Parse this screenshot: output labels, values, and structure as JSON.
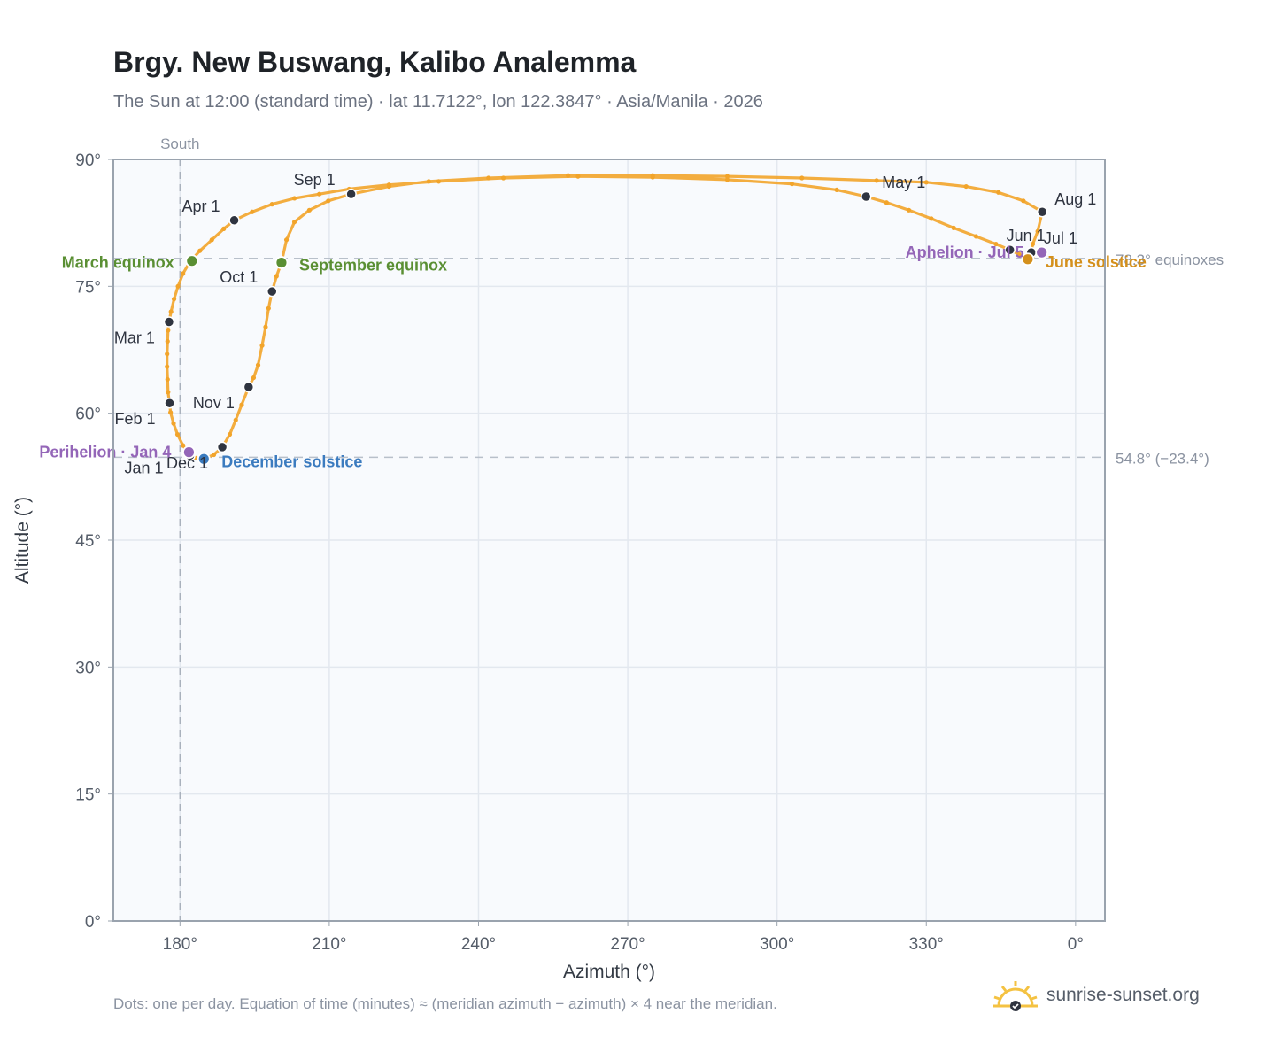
{
  "title": "Brgy. New Buswang, Kalibo Analemma",
  "subtitle": "The Sun at 12:00 (standard time) · lat 11.7122°, lon 122.3847° · Asia/Manila · 2026",
  "footnote": "Dots: one per day. Equation of time (minutes) ≈ (meridian azimuth − azimuth) × 4 near the meridian.",
  "brand": {
    "name": "sunrise-sunset.org",
    "icon": "sun-logo-icon"
  },
  "colors": {
    "path": "#f2a42a",
    "month_dot": "#2f3440",
    "equinox": "#5a8f33",
    "december": "#3b7bbf",
    "june": "#d4901c",
    "apsis": "#9466b8",
    "plot_bg": "#f8fafd",
    "grid": "#e3e8ef",
    "frame": "#9aa3ae"
  },
  "chart_data": {
    "type": "scatter",
    "title": "Brgy. New Buswang, Kalibo Analemma",
    "xlabel": "Azimuth (°)",
    "ylabel": "Altitude (°)",
    "xlim": [
      166.6,
      365.9
    ],
    "ylim": [
      0,
      90
    ],
    "x_ticks": [
      "180°",
      "210°",
      "240°",
      "270°",
      "300°",
      "330°",
      "0°"
    ],
    "y_ticks": [
      "0°",
      "15°",
      "30°",
      "45°",
      "60°",
      "75°",
      "90°"
    ],
    "south_label": "South",
    "south_azimuth": 180,
    "grid": true,
    "reference_lines": [
      {
        "altitude": 78.3,
        "label": "78.3° equinoxes"
      },
      {
        "altitude": 54.8,
        "label": "54.8° (−23.4°)"
      }
    ],
    "month_markers": [
      {
        "label": "Jan 1",
        "az": 182.0,
        "alt": 55.0
      },
      {
        "label": "Feb 1",
        "az": 177.9,
        "alt": 61.2
      },
      {
        "label": "Mar 1",
        "az": 177.8,
        "alt": 70.8
      },
      {
        "label": "Apr 1",
        "az": 190.9,
        "alt": 82.8
      },
      {
        "label": "May 1",
        "az": 317.9,
        "alt": 85.6
      },
      {
        "label": "Jun 1",
        "az": 346.8,
        "alt": 79.3
      },
      {
        "label": "Jul 1",
        "az": 351.1,
        "alt": 79.0
      },
      {
        "label": "Aug 1",
        "az": 353.3,
        "alt": 83.8
      },
      {
        "label": "Sep 1",
        "az": 214.4,
        "alt": 85.9
      },
      {
        "label": "Oct 1",
        "az": 198.5,
        "alt": 74.4
      },
      {
        "label": "Nov 1",
        "az": 193.8,
        "alt": 63.1
      },
      {
        "label": "Dec 1",
        "az": 188.5,
        "alt": 56.0
      }
    ],
    "events": [
      {
        "label": "March equinox",
        "az": 182.4,
        "alt": 78.0,
        "kind": "equinox"
      },
      {
        "label": "September equinox",
        "az": 200.4,
        "alt": 77.8,
        "kind": "equinox"
      },
      {
        "label": "December solstice",
        "az": 184.8,
        "alt": 54.6,
        "kind": "december"
      },
      {
        "label": "June solstice",
        "az": 350.4,
        "alt": 78.2,
        "kind": "june"
      },
      {
        "label": "Perihelion · Jan 4",
        "az": 181.8,
        "alt": 55.4,
        "kind": "apsis"
      },
      {
        "label": "Aphelion · Jul 5",
        "az": 353.2,
        "alt": 79.0,
        "kind": "apsis"
      }
    ],
    "daily_path": [
      [
        182.0,
        55.0
      ],
      [
        180.6,
        56.2
      ],
      [
        179.5,
        57.5
      ],
      [
        178.7,
        58.8
      ],
      [
        178.1,
        60.1
      ],
      [
        177.9,
        61.2
      ],
      [
        177.6,
        62.5
      ],
      [
        177.5,
        64.0
      ],
      [
        177.4,
        65.5
      ],
      [
        177.4,
        67.0
      ],
      [
        177.5,
        68.5
      ],
      [
        177.6,
        69.8
      ],
      [
        177.8,
        70.8
      ],
      [
        178.2,
        72.0
      ],
      [
        178.8,
        73.5
      ],
      [
        179.6,
        75.0
      ],
      [
        180.6,
        76.5
      ],
      [
        182.0,
        77.9
      ],
      [
        184.0,
        79.2
      ],
      [
        186.4,
        80.5
      ],
      [
        188.8,
        81.8
      ],
      [
        190.9,
        82.8
      ],
      [
        194.5,
        83.8
      ],
      [
        198.5,
        84.7
      ],
      [
        203.0,
        85.4
      ],
      [
        208.0,
        85.9
      ],
      [
        214.0,
        86.5
      ],
      [
        222.0,
        87.0
      ],
      [
        232.0,
        87.4
      ],
      [
        245.0,
        87.8
      ],
      [
        260.0,
        88.0
      ],
      [
        275.0,
        87.9
      ],
      [
        290.0,
        87.6
      ],
      [
        303.0,
        87.1
      ],
      [
        312.0,
        86.4
      ],
      [
        317.9,
        85.6
      ],
      [
        322.0,
        84.9
      ],
      [
        326.5,
        84.0
      ],
      [
        331.0,
        83.0
      ],
      [
        335.5,
        81.9
      ],
      [
        340.0,
        80.9
      ],
      [
        344.0,
        80.0
      ],
      [
        346.8,
        79.3
      ],
      [
        348.6,
        78.8
      ],
      [
        350.4,
        78.2
      ],
      [
        351.3,
        78.5
      ],
      [
        351.1,
        79.0
      ],
      [
        351.4,
        80.0
      ],
      [
        352.4,
        81.5
      ],
      [
        353.3,
        83.8
      ],
      [
        349.5,
        85.1
      ],
      [
        344.5,
        86.1
      ],
      [
        338.0,
        86.8
      ],
      [
        330.0,
        87.3
      ],
      [
        320.0,
        87.5
      ],
      [
        305.0,
        87.8
      ],
      [
        290.0,
        88.0
      ],
      [
        275.0,
        88.1
      ],
      [
        258.0,
        88.1
      ],
      [
        242.0,
        87.8
      ],
      [
        230.0,
        87.4
      ],
      [
        222.0,
        86.8
      ],
      [
        214.4,
        85.9
      ],
      [
        209.8,
        85.1
      ],
      [
        206.0,
        84.0
      ],
      [
        203.0,
        82.6
      ],
      [
        201.4,
        80.5
      ],
      [
        200.4,
        77.8
      ],
      [
        199.4,
        76.2
      ],
      [
        198.5,
        74.4
      ],
      [
        197.8,
        72.4
      ],
      [
        197.2,
        70.2
      ],
      [
        196.5,
        68.0
      ],
      [
        195.7,
        65.7
      ],
      [
        194.8,
        64.2
      ],
      [
        193.8,
        63.1
      ],
      [
        192.4,
        61.0
      ],
      [
        191.2,
        59.2
      ],
      [
        190.0,
        57.5
      ],
      [
        188.5,
        56.0
      ],
      [
        186.8,
        55.1
      ],
      [
        184.8,
        54.6
      ],
      [
        183.2,
        54.7
      ],
      [
        182.0,
        55.0
      ]
    ]
  }
}
